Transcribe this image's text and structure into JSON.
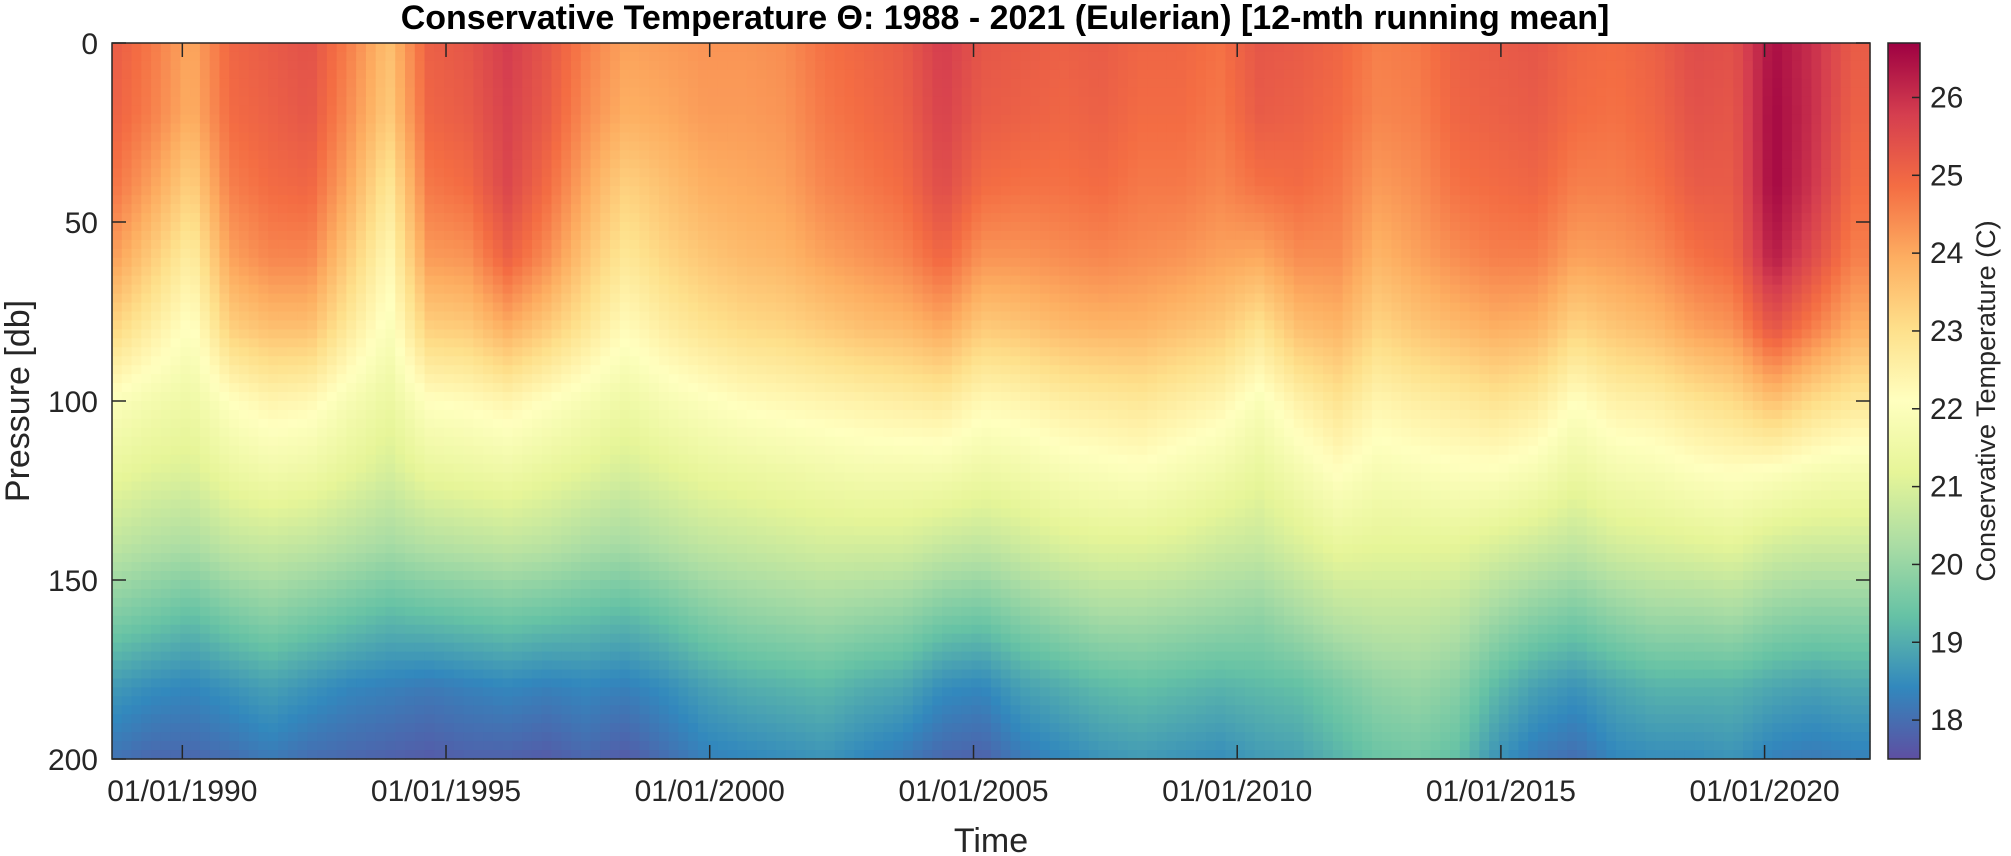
{
  "chart_data": {
    "type": "heatmap",
    "title": "Conservative Temperature Θ: 1988 - 2021 (Eulerian) [12-mth running mean]",
    "xlabel": "Time",
    "ylabel": "Pressure [db]",
    "colorbar_label": "Conservative Temperature (C)",
    "colormap": "spectral",
    "colormap_colors": [
      "#5e4fa2",
      "#3288bd",
      "#66c2a5",
      "#abdda4",
      "#e6f598",
      "#ffffbf",
      "#fee08b",
      "#fdae61",
      "#f46d43",
      "#d53e4f",
      "#9e0142"
    ],
    "xlim": [
      "1988-09-01",
      "2021-12-31"
    ],
    "ylim": [
      0,
      200
    ],
    "y_reversed": true,
    "clim": [
      17.5,
      26.7
    ],
    "x_ticks": [
      "1990-01-01",
      "1995-01-01",
      "2000-01-01",
      "2005-01-01",
      "2010-01-01",
      "2015-01-01",
      "2020-01-01"
    ],
    "x_tick_labels": [
      "01/01/1990",
      "01/01/1995",
      "01/01/2000",
      "01/01/2005",
      "01/01/2010",
      "01/01/2015",
      "01/01/2020"
    ],
    "y_ticks": [
      0,
      50,
      100,
      150,
      200
    ],
    "y_tick_labels": [
      "0",
      "50",
      "100",
      "150",
      "200"
    ],
    "colorbar_ticks": [
      18,
      19,
      20,
      21,
      22,
      23,
      24,
      25,
      26
    ],
    "colorbar_tick_labels": [
      "18",
      "19",
      "20",
      "21",
      "22",
      "23",
      "24",
      "25",
      "26"
    ],
    "pressure": [
      0,
      20,
      40,
      60,
      80,
      100,
      120,
      140,
      160,
      180,
      200
    ],
    "time": [
      "1988-09-01",
      "1989-06-01",
      "1990-03-01",
      "1990-12-01",
      "1991-09-01",
      "1992-06-01",
      "1993-03-01",
      "1993-12-01",
      "1994-09-01",
      "1995-06-01",
      "1996-03-01",
      "1996-12-01",
      "1997-09-01",
      "1998-06-01",
      "1999-03-01",
      "1999-12-01",
      "2000-09-01",
      "2001-06-01",
      "2002-03-01",
      "2002-12-01",
      "2003-09-01",
      "2004-06-01",
      "2005-03-01",
      "2005-12-01",
      "2006-09-01",
      "2007-06-01",
      "2008-03-01",
      "2008-12-01",
      "2009-09-01",
      "2010-06-01",
      "2011-03-01",
      "2011-12-01",
      "2012-09-01",
      "2013-06-01",
      "2014-03-01",
      "2014-12-01",
      "2015-09-01",
      "2016-06-01",
      "2017-03-01",
      "2017-12-01",
      "2018-09-01",
      "2019-06-01",
      "2020-03-01",
      "2020-12-01",
      "2021-09-01"
    ],
    "values": [
      [
        25.2,
        24.7,
        24.0,
        25.0,
        25.2,
        25.4,
        24.6,
        23.6,
        25.1,
        25.3,
        25.8,
        25.3,
        24.6,
        24.1,
        24.2,
        24.3,
        24.3,
        24.4,
        24.8,
        25.0,
        25.2,
        25.8,
        25.3,
        25.2,
        25.1,
        25.2,
        25.0,
        25.0,
        24.8,
        25.3,
        25.2,
        25.0,
        24.6,
        24.7,
        25.1,
        25.2,
        25.3,
        25.0,
        24.9,
        25.1,
        25.5,
        25.4,
        26.5,
        26.0,
        25.2
      ],
      [
        25.1,
        24.6,
        23.9,
        24.9,
        25.1,
        25.3,
        24.4,
        23.4,
        25.0,
        25.2,
        25.7,
        25.2,
        24.4,
        23.9,
        24.0,
        24.2,
        24.2,
        24.3,
        24.7,
        24.9,
        25.1,
        25.7,
        25.2,
        25.1,
        25.0,
        25.1,
        24.9,
        24.9,
        24.7,
        25.2,
        25.1,
        24.9,
        24.5,
        24.6,
        25.0,
        25.1,
        25.2,
        24.9,
        24.8,
        25.0,
        25.4,
        25.3,
        26.6,
        26.0,
        25.1
      ],
      [
        24.8,
        24.1,
        23.3,
        24.6,
        24.9,
        25.0,
        24.0,
        22.8,
        24.7,
        24.9,
        25.6,
        24.9,
        24.0,
        23.3,
        23.6,
        23.9,
        24.0,
        24.1,
        24.5,
        24.7,
        24.9,
        25.5,
        24.9,
        24.8,
        24.8,
        24.9,
        24.7,
        24.7,
        24.5,
        24.8,
        24.9,
        24.7,
        24.2,
        24.4,
        24.8,
        24.9,
        25.0,
        24.6,
        24.6,
        24.8,
        25.2,
        25.2,
        26.6,
        25.9,
        24.9
      ],
      [
        24.2,
        23.4,
        22.6,
        24.1,
        24.5,
        24.5,
        23.4,
        22.3,
        24.2,
        24.3,
        25.1,
        24.4,
        23.5,
        22.8,
        23.2,
        23.5,
        23.7,
        23.8,
        24.1,
        24.3,
        24.5,
        25.0,
        24.3,
        24.3,
        24.4,
        24.5,
        24.4,
        24.3,
        24.1,
        24.0,
        24.4,
        24.4,
        23.8,
        24.1,
        24.4,
        24.6,
        24.6,
        24.1,
        24.2,
        24.4,
        24.8,
        25.0,
        26.3,
        25.5,
        24.6
      ],
      [
        23.2,
        22.6,
        22.0,
        23.3,
        23.6,
        23.6,
        22.7,
        21.9,
        23.3,
        23.4,
        23.9,
        23.4,
        22.8,
        22.2,
        22.6,
        22.9,
        23.1,
        23.2,
        23.4,
        23.6,
        23.7,
        24.0,
        23.4,
        23.5,
        23.7,
        23.8,
        23.8,
        23.6,
        23.4,
        22.9,
        23.6,
        23.8,
        23.2,
        23.5,
        23.7,
        23.9,
        23.8,
        23.2,
        23.5,
        23.7,
        24.1,
        24.3,
        25.3,
        24.6,
        23.9
      ],
      [
        22.0,
        21.7,
        21.5,
        22.1,
        22.4,
        22.3,
        21.8,
        21.4,
        22.1,
        22.2,
        22.4,
        22.1,
        21.8,
        21.5,
        21.8,
        22.0,
        22.2,
        22.3,
        22.4,
        22.5,
        22.6,
        22.7,
        22.3,
        22.4,
        22.6,
        22.7,
        22.8,
        22.6,
        22.4,
        21.9,
        22.5,
        22.9,
        22.4,
        22.6,
        22.7,
        22.9,
        22.7,
        22.1,
        22.5,
        22.6,
        22.9,
        23.1,
        23.6,
        23.1,
        22.8
      ],
      [
        21.3,
        21.1,
        21.0,
        21.4,
        21.6,
        21.5,
        21.2,
        20.9,
        21.3,
        21.4,
        21.5,
        21.3,
        21.1,
        20.9,
        21.1,
        21.3,
        21.4,
        21.5,
        21.6,
        21.7,
        21.7,
        21.7,
        21.5,
        21.6,
        21.8,
        21.9,
        22.0,
        21.8,
        21.6,
        21.3,
        21.7,
        22.1,
        21.8,
        21.9,
        22.0,
        22.0,
        21.8,
        21.4,
        21.7,
        21.8,
        22.0,
        22.1,
        22.0,
        21.8,
        21.7
      ],
      [
        20.6,
        20.4,
        20.3,
        20.6,
        20.7,
        20.6,
        20.4,
        20.2,
        20.4,
        20.5,
        20.6,
        20.5,
        20.3,
        20.2,
        20.4,
        20.6,
        20.7,
        20.8,
        20.9,
        20.9,
        20.9,
        20.7,
        20.6,
        20.8,
        21.0,
        21.1,
        21.1,
        21.0,
        20.8,
        20.7,
        21.0,
        21.3,
        21.2,
        21.2,
        21.2,
        21.0,
        20.8,
        20.6,
        20.9,
        21.0,
        21.1,
        21.2,
        20.9,
        20.8,
        20.8
      ],
      [
        19.7,
        19.5,
        19.3,
        19.6,
        19.8,
        19.6,
        19.4,
        19.2,
        19.3,
        19.4,
        19.5,
        19.4,
        19.3,
        19.2,
        19.4,
        19.7,
        19.9,
        20.0,
        20.1,
        20.0,
        19.9,
        19.6,
        19.5,
        19.8,
        20.0,
        20.2,
        20.2,
        20.1,
        20.0,
        19.9,
        20.2,
        20.5,
        20.6,
        20.6,
        20.5,
        20.1,
        19.8,
        19.6,
        19.9,
        20.1,
        20.1,
        20.2,
        19.9,
        19.8,
        19.8
      ],
      [
        18.7,
        18.5,
        18.4,
        18.6,
        18.8,
        18.6,
        18.4,
        18.3,
        18.2,
        18.3,
        18.4,
        18.3,
        18.4,
        18.3,
        18.5,
        18.8,
        19.0,
        19.1,
        19.2,
        19.0,
        18.9,
        18.5,
        18.4,
        18.8,
        19.0,
        19.2,
        19.3,
        19.2,
        19.1,
        19.2,
        19.3,
        19.6,
        19.9,
        20.0,
        19.8,
        19.2,
        18.8,
        18.6,
        18.9,
        19.1,
        19.1,
        19.1,
        18.9,
        18.8,
        18.9
      ],
      [
        18.1,
        17.9,
        17.9,
        18.0,
        18.2,
        18.0,
        17.9,
        17.8,
        17.7,
        17.8,
        17.8,
        17.7,
        17.9,
        17.7,
        18.0,
        18.3,
        18.4,
        18.5,
        18.6,
        18.4,
        18.2,
        17.9,
        17.8,
        18.2,
        18.4,
        18.6,
        18.7,
        18.6,
        18.5,
        18.7,
        18.8,
        19.1,
        19.4,
        19.5,
        19.3,
        18.6,
        18.2,
        18.0,
        18.4,
        18.5,
        18.5,
        18.6,
        18.3,
        18.2,
        18.3
      ]
    ]
  }
}
